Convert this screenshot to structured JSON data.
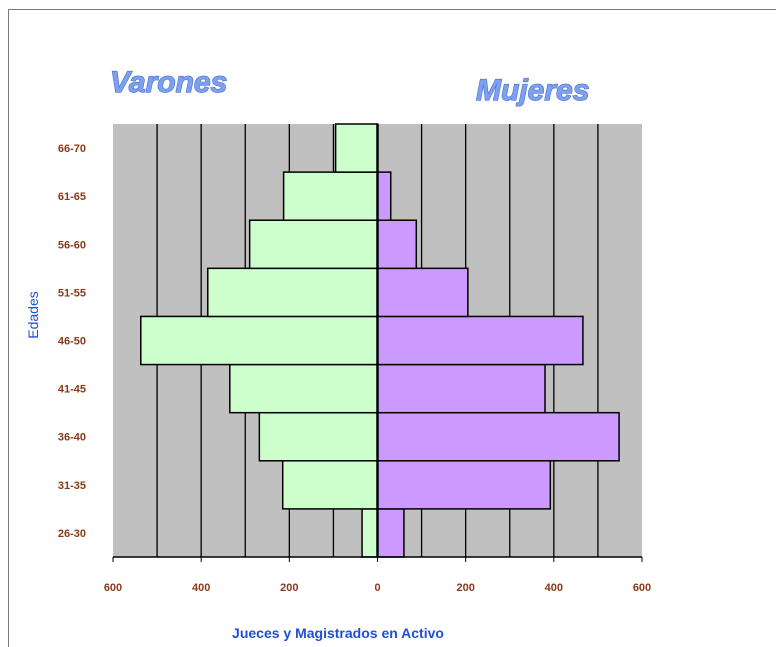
{
  "chart_data": {
    "type": "bar",
    "orientation": "horizontal-population-pyramid",
    "categories": [
      "26-30",
      "31-35",
      "36-40",
      "41-45",
      "46-50",
      "51-55",
      "56-60",
      "61-65",
      "66-70"
    ],
    "series": [
      {
        "name": "Varones",
        "values": [
          35,
          215,
          268,
          335,
          537,
          385,
          290,
          213,
          95
        ],
        "color": "#ccffcc"
      },
      {
        "name": "Mujeres",
        "values": [
          60,
          392,
          548,
          380,
          466,
          205,
          88,
          30,
          0
        ],
        "color": "#cc99ff"
      }
    ],
    "title": "",
    "xlabel": "Jueces y Magistrados en  Activo",
    "ylabel": "Edades",
    "xlim": [
      -600,
      600
    ],
    "xticks": [
      -600,
      -400,
      -200,
      0,
      200,
      400,
      600
    ],
    "xtick_labels": [
      "600",
      "400",
      "200",
      "0",
      "200",
      "400",
      "600"
    ],
    "plot_background": "#c0c0c0",
    "grid": "vertical",
    "legend": "none"
  }
}
